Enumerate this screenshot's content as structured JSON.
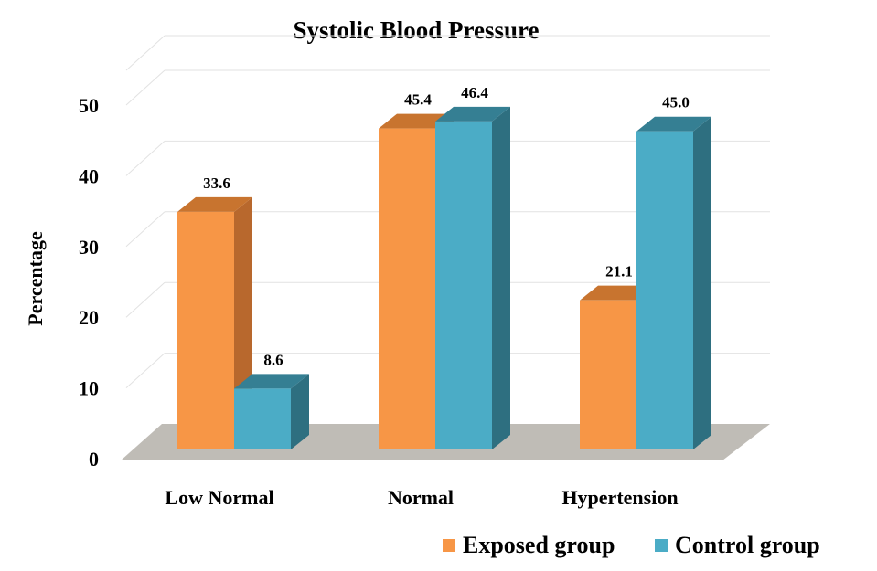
{
  "chart_data": {
    "type": "bar",
    "title": "Systolic Blood Pressure",
    "xlabel": "",
    "ylabel": "Percentage",
    "categories": [
      "Low Normal",
      "Normal",
      "Hypertension"
    ],
    "ylim": [
      0,
      50
    ],
    "yticks": [
      "0",
      "10",
      "20",
      "30",
      "40",
      "50"
    ],
    "grid": true,
    "legend_position": "bottom-right",
    "series": [
      {
        "name": "Exposed group",
        "values": [
          33.6,
          45.4,
          21.1
        ],
        "labels": [
          "33.6",
          "45.4",
          "21.1"
        ],
        "color": "#f79646",
        "side_color": "#b8682d",
        "top_color": "#c8742f"
      },
      {
        "name": "Control group",
        "values": [
          8.6,
          46.4,
          45.0
        ],
        "labels": [
          "8.6",
          "46.4",
          "45.0"
        ],
        "color": "#4bacc6",
        "side_color": "#2e6f80",
        "top_color": "#357f93"
      }
    ],
    "floor_color": "#bfbcb6"
  }
}
